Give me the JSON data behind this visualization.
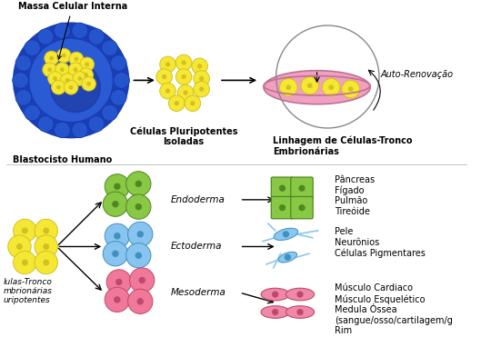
{
  "bg_color": "#ffffff",
  "top_labels": {
    "massa_celular": "Massa Celular Interna",
    "celulas_pluripotentes": "Células Pluripotentes\nIsoladas",
    "linhagem": "Linhagem de Células-Tronco\nEmbrionárias",
    "blastocisto": "Blastocisto Humano",
    "auto_renovacao": "Auto-Renovação"
  },
  "bottom_labels": {
    "celulas_tronco": "lulas-Tronco\nmbrionárias\nuripotentes",
    "endoderma": "Endoderma",
    "ectoderma": "Ectoderma",
    "mesoderma": "Mesoderma",
    "endoderma_result": "Pâncreas\nFígado\nPulmão\nTireóide",
    "ectoderma_result": "Pele\nNeurônios\nCélulas Pigmentares",
    "mesoderma_result": "Músculo Cardiaco\nMúsculo Esquelético\nMedula Óssea\n(sangue/osso/cartilagem/g\nRim"
  },
  "colors": {
    "blasto_outer": "#1a3fb5",
    "blasto_inner": "#2a5ad4",
    "blasto_center": "#1a3090",
    "yellow_cell": "#f5e835",
    "yellow_cell_outline": "#d4c020",
    "pink_dish": "#f0a0c0",
    "dish_outline": "#c07090",
    "green_cell": "#88c844",
    "green_cell_outline": "#508820",
    "blue_cell": "#88c4f0",
    "blue_cell_outline": "#4090c0",
    "pink_cell": "#f07898",
    "pink_cell_outline": "#c04870",
    "neuron_color": "#88c8f0",
    "muscle_color": "#f088a8"
  },
  "text_fontsize": 7,
  "label_fontsize": 7.5
}
